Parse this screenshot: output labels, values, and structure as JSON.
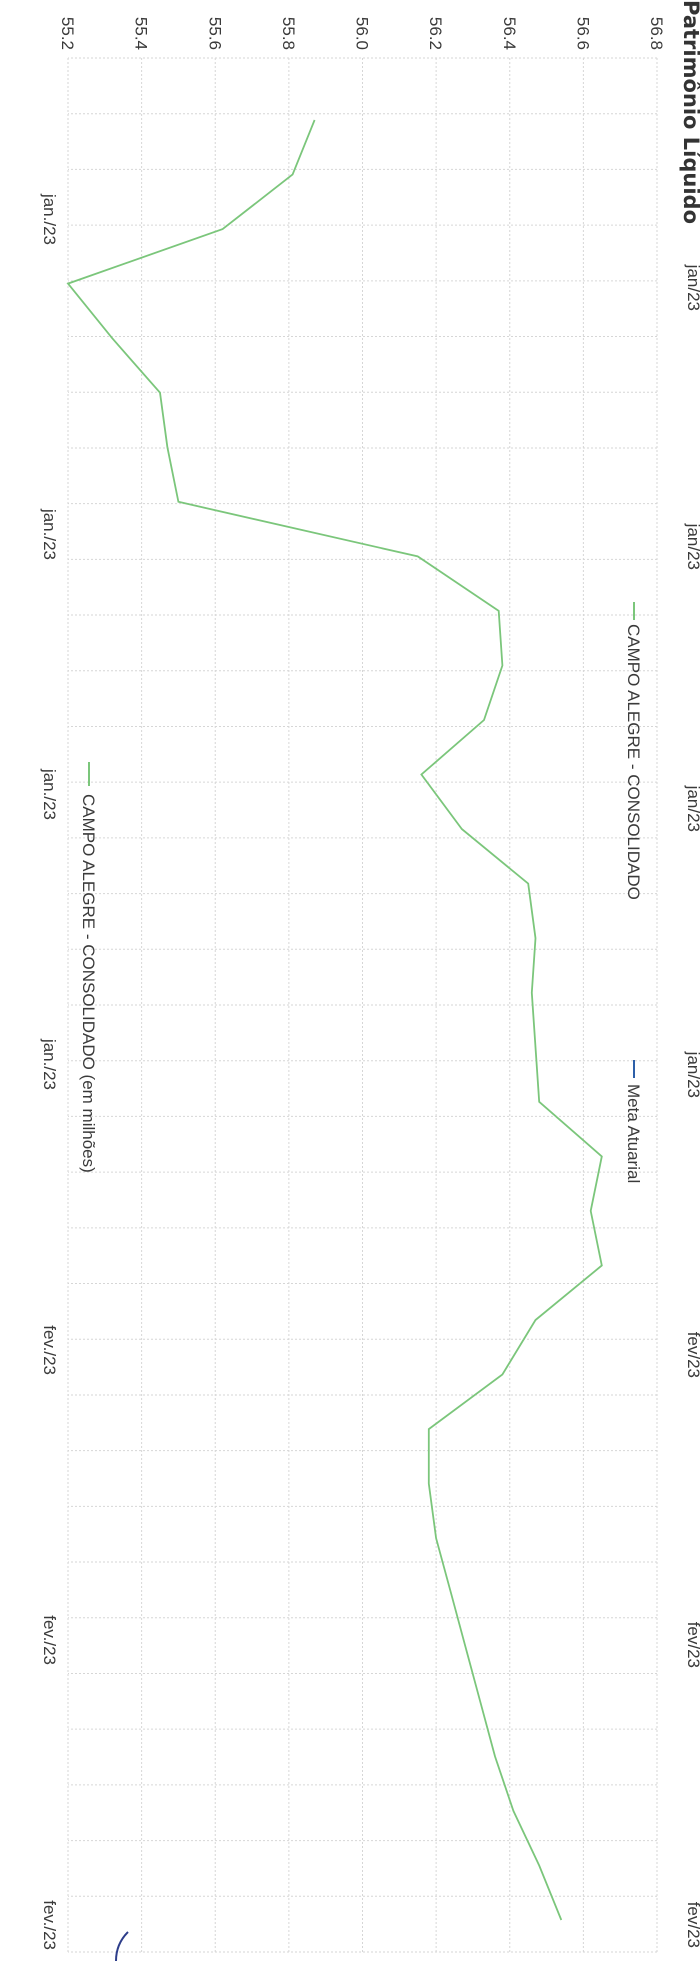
{
  "colors": {
    "background": "#ffffff",
    "grid": "#d6d6d6",
    "series_campo": "#7bc67b",
    "series_meta": "#2d5fa8",
    "text": "#3a3a3a"
  },
  "chart_data": [
    {
      "type": "line",
      "title": "Patrimônio Líquido",
      "xlabel": "",
      "ylabel": "",
      "ylim": [
        55.2,
        56.8
      ],
      "y_ticks": [
        "56.8",
        "56.6",
        "56.4",
        "56.2",
        "56.0",
        "55.8",
        "55.6",
        "55.4",
        "55.2"
      ],
      "x_tick_labels": [
        "jan./23",
        "jan./23",
        "jan./23",
        "jan./23",
        "fev./23",
        "fev./23",
        "fev./23"
      ],
      "grid": true,
      "legend_position": "bottom",
      "series": [
        {
          "name": "CAMPO ALEGRE - CONSOLIDADO (em milhões)",
          "values": [
            55.87,
            55.81,
            55.62,
            55.2,
            55.32,
            55.45,
            55.47,
            55.5,
            56.15,
            56.37,
            56.38,
            56.33,
            56.16,
            56.27,
            56.45,
            56.47,
            56.46,
            56.47,
            56.48,
            56.65,
            56.62,
            56.65,
            56.47,
            56.38,
            56.18,
            56.18,
            56.2,
            56.24,
            56.28,
            56.32,
            56.36,
            56.41,
            56.48,
            56.54
          ]
        }
      ]
    }
  ],
  "top_legend": {
    "campo_label": "CAMPO ALEGRE - CONSOLIDADO",
    "meta_label": "Meta Atuarial"
  },
  "top_axis_labels": [
    "jan/23",
    "jan/23",
    "jan/23",
    "jan/23",
    "fev/23",
    "fev/23",
    "fev/23"
  ]
}
